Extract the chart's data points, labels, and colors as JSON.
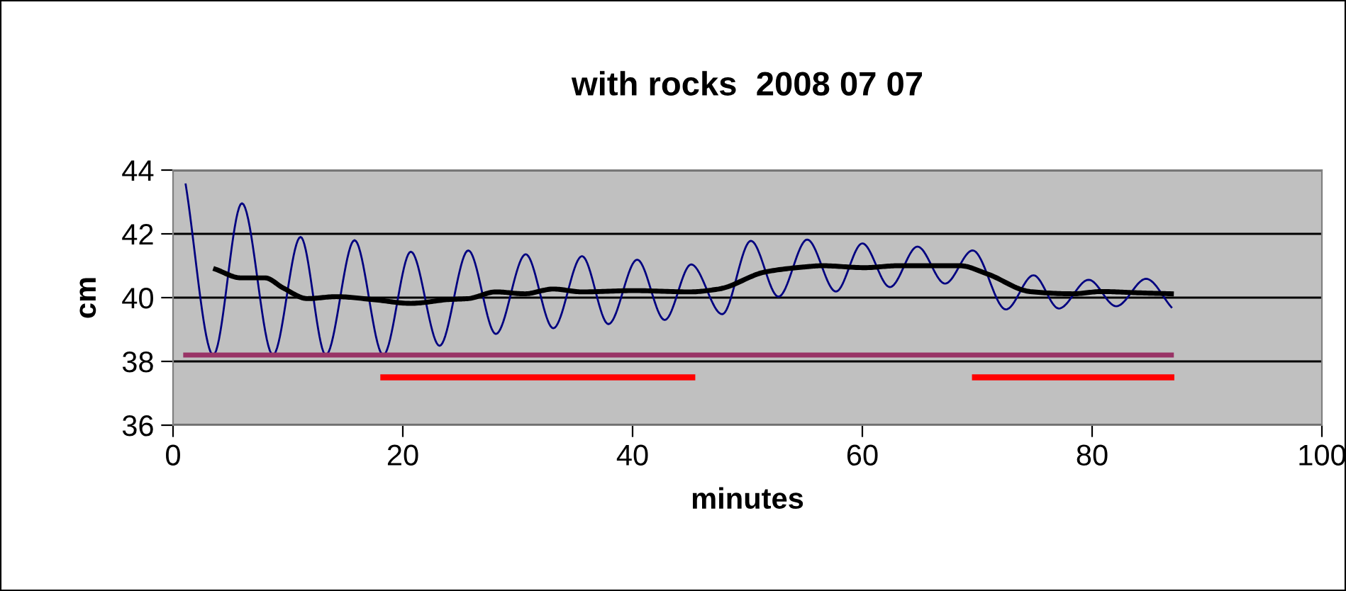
{
  "chart_data": {
    "type": "line",
    "title": "with rocks  2008 07 07",
    "xlabel": "minutes",
    "ylabel": "cm",
    "xlim": [
      0,
      100
    ],
    "xticks": [
      0,
      20,
      40,
      60,
      80,
      100
    ],
    "ylim": [
      36,
      44
    ],
    "yticks": [
      36,
      38,
      40,
      42,
      44
    ],
    "grid": "y",
    "marker": "none",
    "series": [
      {
        "color": "#000080",
        "x": [
          1.1,
          3.5,
          6.0,
          8.7,
          11.1,
          13.3,
          15.8,
          18.3,
          20.7,
          23.2,
          25.7,
          28.1,
          30.7,
          33.1,
          35.6,
          37.9,
          40.4,
          42.8,
          45.1,
          47.8,
          50.3,
          52.7,
          55.2,
          57.7,
          60.0,
          62.4,
          64.8,
          67.2,
          69.6,
          72.5,
          74.9,
          77.1,
          79.7,
          82.1,
          84.7,
          86.9
        ],
        "values": [
          43.55,
          38.2,
          42.96,
          38.2,
          41.9,
          38.2,
          41.8,
          38.2,
          41.44,
          38.49,
          41.48,
          38.86,
          41.36,
          39.04,
          41.3,
          39.17,
          41.19,
          39.3,
          41.04,
          39.48,
          41.78,
          40.03,
          41.82,
          40.19,
          41.7,
          40.33,
          41.6,
          40.44,
          41.48,
          39.63,
          40.7,
          39.66,
          40.56,
          39.73,
          40.59,
          39.7
        ]
      },
      {
        "color": "#000000",
        "x": [
          3.7,
          5.9,
          8.0,
          9.6,
          11.7,
          14.2,
          17.4,
          20.7,
          24.0,
          25.7,
          28.1,
          30.6,
          33.1,
          35.6,
          40.1,
          45.0,
          47.5,
          51.6,
          54.9,
          56.5,
          60.2,
          63.1,
          68.5,
          70.9,
          74.6,
          78.3,
          80.8,
          84.1,
          86.9
        ],
        "values": [
          40.89,
          40.62,
          40.62,
          40.3,
          39.97,
          40.03,
          39.94,
          39.82,
          39.94,
          39.97,
          40.18,
          40.12,
          40.27,
          40.18,
          40.22,
          40.18,
          40.27,
          40.81,
          40.96,
          41.0,
          40.94,
          41.0,
          41.0,
          40.74,
          40.19,
          40.12,
          40.19,
          40.15,
          40.12
        ]
      },
      {
        "color": "#993366",
        "x": [
          1.1,
          86.9
        ],
        "values": [
          38.2,
          38.2
        ]
      },
      {
        "color": "#ff0000",
        "x": [
          18.3,
          45.2
        ],
        "values": [
          37.5,
          37.5
        ]
      },
      {
        "color": "#ff0000",
        "x": [
          69.8,
          86.9
        ],
        "values": [
          37.5,
          37.5
        ]
      }
    ]
  }
}
